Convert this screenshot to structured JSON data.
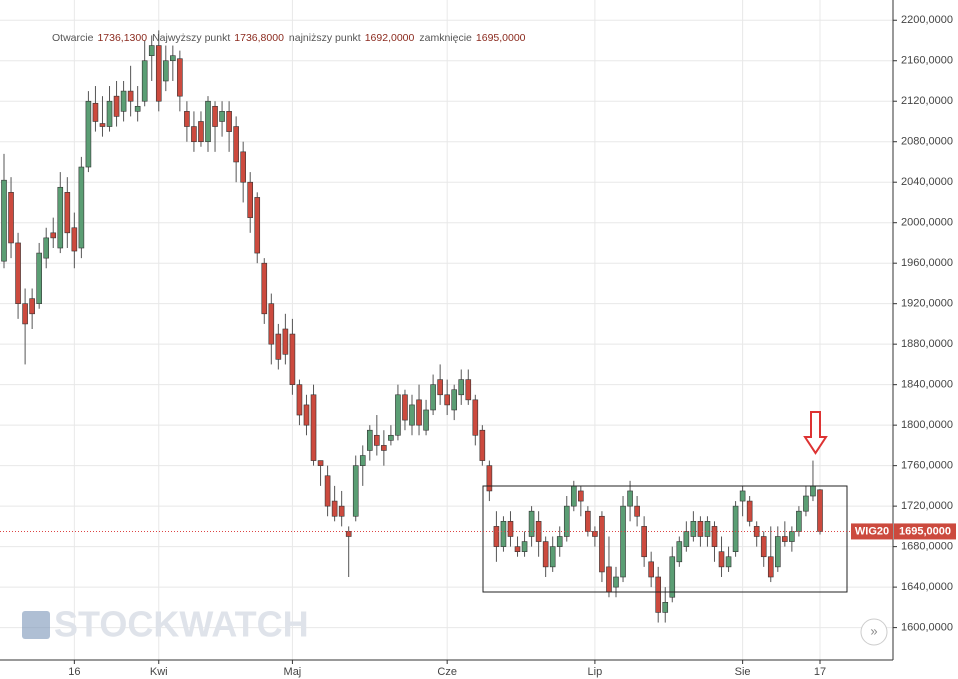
{
  "chart_data": {
    "type": "candlestick",
    "series_name": "WIG20",
    "price_label": "1695,0000",
    "info": [
      {
        "label": "Otwarcie",
        "value": "1736,1300"
      },
      {
        "label": "Najwyższy punkt",
        "value": "1736,8000"
      },
      {
        "label": "najniższy punkt",
        "value": "1692,0000"
      },
      {
        "label": "zamknięcie",
        "value": "1695,0000"
      }
    ],
    "watermark": "STOCKWATCH",
    "colors": {
      "up": "#5b9e74",
      "down": "#cc4a3e"
    },
    "ylim": [
      1568,
      2220
    ],
    "yticks": [
      {
        "value": 1600,
        "label": "1600,0000"
      },
      {
        "value": 1640,
        "label": "1640,0000"
      },
      {
        "value": 1680,
        "label": "1680,0000"
      },
      {
        "value": 1720,
        "label": "1720,0000"
      },
      {
        "value": 1760,
        "label": "1760,0000"
      },
      {
        "value": 1800,
        "label": "1800,0000"
      },
      {
        "value": 1840,
        "label": "1840,0000"
      },
      {
        "value": 1880,
        "label": "1880,0000"
      },
      {
        "value": 1920,
        "label": "1920,0000"
      },
      {
        "value": 1960,
        "label": "1960,0000"
      },
      {
        "value": 2000,
        "label": "2000,0000"
      },
      {
        "value": 2040,
        "label": "2040,0000"
      },
      {
        "value": 2080,
        "label": "2080,0000"
      },
      {
        "value": 2120,
        "label": "2120,0000"
      },
      {
        "value": 2160,
        "label": "2160,0000"
      },
      {
        "value": 2200,
        "label": "2200,0000"
      }
    ],
    "grid": true,
    "categories": [
      null,
      null,
      null,
      null,
      null,
      null,
      null,
      null,
      null,
      null,
      "16",
      null,
      null,
      null,
      null,
      null,
      null,
      null,
      null,
      null,
      null,
      null,
      "Kwi",
      null,
      null,
      null,
      null,
      null,
      null,
      null,
      null,
      null,
      null,
      null,
      null,
      null,
      null,
      null,
      null,
      null,
      null,
      "Maj",
      null,
      null,
      null,
      null,
      null,
      null,
      null,
      null,
      null,
      null,
      null,
      null,
      null,
      null,
      null,
      null,
      null,
      null,
      null,
      null,
      null,
      "Cze",
      null,
      null,
      null,
      null,
      null,
      null,
      null,
      null,
      null,
      null,
      null,
      null,
      null,
      null,
      null,
      null,
      null,
      null,
      null,
      null,
      "Lip",
      null,
      null,
      null,
      null,
      null,
      null,
      null,
      null,
      null,
      null,
      null,
      null,
      null,
      null,
      null,
      null,
      null,
      null,
      null,
      null,
      "Sie",
      null,
      null,
      null,
      null,
      null,
      null,
      null,
      null,
      null,
      null,
      "17"
    ],
    "candles": [
      [
        1962,
        2068,
        1955,
        2042
      ],
      [
        2030,
        2045,
        1965,
        1980
      ],
      [
        1980,
        1990,
        1905,
        1920
      ],
      [
        1920,
        1935,
        1860,
        1900
      ],
      [
        1925,
        1935,
        1895,
        1910
      ],
      [
        1920,
        1980,
        1915,
        1970
      ],
      [
        1965,
        1995,
        1955,
        1985
      ],
      [
        1990,
        2005,
        1975,
        1985
      ],
      [
        1975,
        2050,
        1970,
        2035
      ],
      [
        2030,
        2045,
        1975,
        1990
      ],
      [
        1995,
        2010,
        1955,
        1972
      ],
      [
        1975,
        2065,
        1965,
        2055
      ],
      [
        2055,
        2130,
        2050,
        2120
      ],
      [
        2118,
        2135,
        2090,
        2100
      ],
      [
        2098,
        2125,
        2085,
        2095
      ],
      [
        2095,
        2135,
        2090,
        2120
      ],
      [
        2125,
        2140,
        2095,
        2105
      ],
      [
        2110,
        2140,
        2100,
        2130
      ],
      [
        2130,
        2155,
        2105,
        2120
      ],
      [
        2110,
        2135,
        2100,
        2115
      ],
      [
        2120,
        2180,
        2115,
        2160
      ],
      [
        2165,
        2185,
        2140,
        2175
      ],
      [
        2175,
        2190,
        2110,
        2120
      ],
      [
        2140,
        2175,
        2130,
        2160
      ],
      [
        2160,
        2175,
        2140,
        2165
      ],
      [
        2162,
        2170,
        2110,
        2125
      ],
      [
        2110,
        2120,
        2080,
        2095
      ],
      [
        2095,
        2110,
        2070,
        2080
      ],
      [
        2100,
        2110,
        2075,
        2080
      ],
      [
        2080,
        2125,
        2070,
        2120
      ],
      [
        2115,
        2120,
        2070,
        2095
      ],
      [
        2100,
        2120,
        2085,
        2110
      ],
      [
        2110,
        2120,
        2070,
        2090
      ],
      [
        2095,
        2105,
        2040,
        2060
      ],
      [
        2070,
        2080,
        2020,
        2040
      ],
      [
        2040,
        2050,
        1990,
        2005
      ],
      [
        2025,
        2030,
        1960,
        1970
      ],
      [
        1960,
        1965,
        1900,
        1910
      ],
      [
        1920,
        1930,
        1860,
        1880
      ],
      [
        1890,
        1900,
        1855,
        1865
      ],
      [
        1895,
        1910,
        1860,
        1870
      ],
      [
        1890,
        1905,
        1830,
        1840
      ],
      [
        1840,
        1845,
        1800,
        1810
      ],
      [
        1820,
        1830,
        1790,
        1800
      ],
      [
        1830,
        1840,
        1760,
        1765
      ],
      [
        1765,
        1765,
        1740,
        1760
      ],
      [
        1750,
        1760,
        1710,
        1720
      ],
      [
        1725,
        1740,
        1705,
        1710
      ],
      [
        1720,
        1735,
        1700,
        1710
      ],
      [
        1695,
        1700,
        1650,
        1690
      ],
      [
        1710,
        1770,
        1705,
        1760
      ],
      [
        1760,
        1780,
        1740,
        1770
      ],
      [
        1775,
        1800,
        1765,
        1795
      ],
      [
        1790,
        1810,
        1770,
        1780
      ],
      [
        1780,
        1795,
        1760,
        1775
      ],
      [
        1785,
        1800,
        1780,
        1790
      ],
      [
        1790,
        1840,
        1785,
        1830
      ],
      [
        1830,
        1835,
        1795,
        1805
      ],
      [
        1800,
        1830,
        1790,
        1820
      ],
      [
        1825,
        1840,
        1790,
        1800
      ],
      [
        1795,
        1825,
        1790,
        1815
      ],
      [
        1815,
        1850,
        1810,
        1840
      ],
      [
        1845,
        1860,
        1820,
        1830
      ],
      [
        1830,
        1845,
        1810,
        1820
      ],
      [
        1815,
        1840,
        1805,
        1835
      ],
      [
        1830,
        1855,
        1820,
        1845
      ],
      [
        1845,
        1855,
        1820,
        1825
      ],
      [
        1825,
        1830,
        1780,
        1790
      ],
      [
        1795,
        1800,
        1760,
        1765
      ],
      [
        1760,
        1765,
        1725,
        1735
      ],
      [
        1700,
        1715,
        1665,
        1680
      ],
      [
        1680,
        1710,
        1675,
        1705
      ],
      [
        1705,
        1715,
        1680,
        1690
      ],
      [
        1680,
        1690,
        1670,
        1675
      ],
      [
        1675,
        1695,
        1670,
        1685
      ],
      [
        1690,
        1720,
        1680,
        1715
      ],
      [
        1705,
        1715,
        1670,
        1685
      ],
      [
        1685,
        1690,
        1650,
        1660
      ],
      [
        1660,
        1690,
        1655,
        1680
      ],
      [
        1680,
        1700,
        1670,
        1690
      ],
      [
        1690,
        1730,
        1685,
        1720
      ],
      [
        1720,
        1745,
        1715,
        1740
      ],
      [
        1735,
        1740,
        1710,
        1725
      ],
      [
        1715,
        1720,
        1690,
        1695
      ],
      [
        1695,
        1700,
        1680,
        1690
      ],
      [
        1710,
        1715,
        1645,
        1655
      ],
      [
        1660,
        1690,
        1630,
        1635
      ],
      [
        1640,
        1660,
        1630,
        1650
      ],
      [
        1650,
        1730,
        1645,
        1720
      ],
      [
        1720,
        1745,
        1705,
        1735
      ],
      [
        1720,
        1730,
        1700,
        1710
      ],
      [
        1700,
        1710,
        1660,
        1670
      ],
      [
        1665,
        1675,
        1640,
        1650
      ],
      [
        1650,
        1660,
        1605,
        1615
      ],
      [
        1615,
        1640,
        1605,
        1625
      ],
      [
        1630,
        1680,
        1625,
        1670
      ],
      [
        1665,
        1690,
        1660,
        1685
      ],
      [
        1680,
        1705,
        1675,
        1695
      ],
      [
        1690,
        1715,
        1685,
        1705
      ],
      [
        1705,
        1710,
        1680,
        1690
      ],
      [
        1690,
        1710,
        1680,
        1705
      ],
      [
        1700,
        1705,
        1665,
        1680
      ],
      [
        1675,
        1690,
        1650,
        1660
      ],
      [
        1660,
        1680,
        1655,
        1670
      ],
      [
        1675,
        1725,
        1670,
        1720
      ],
      [
        1725,
        1740,
        1710,
        1735
      ],
      [
        1725,
        1730,
        1700,
        1705
      ],
      [
        1700,
        1705,
        1680,
        1690
      ],
      [
        1690,
        1695,
        1660,
        1670
      ],
      [
        1670,
        1700,
        1645,
        1650
      ],
      [
        1660,
        1700,
        1655,
        1690
      ],
      [
        1690,
        1705,
        1680,
        1685
      ],
      [
        1685,
        1700,
        1675,
        1695
      ],
      [
        1695,
        1720,
        1690,
        1715
      ],
      [
        1715,
        1740,
        1710,
        1730
      ],
      [
        1730,
        1765,
        1725,
        1740
      ],
      [
        1736.13,
        1736.8,
        1692,
        1695
      ]
    ]
  }
}
